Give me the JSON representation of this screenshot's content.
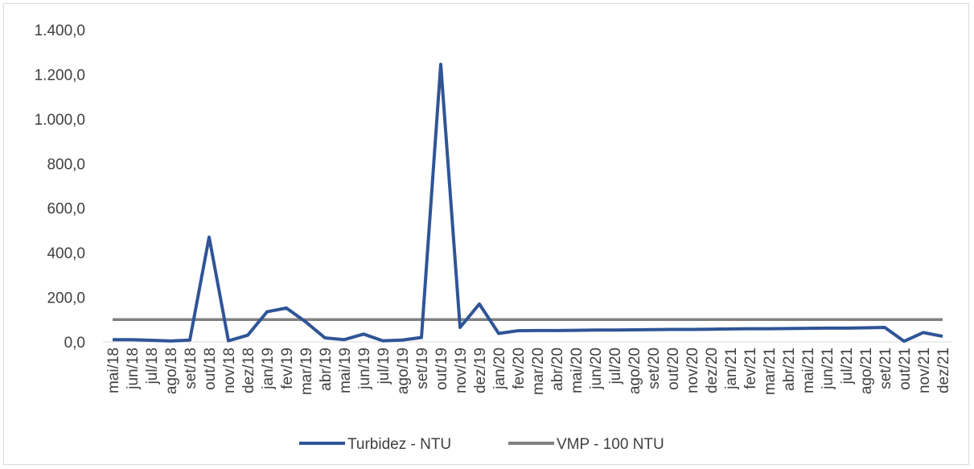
{
  "chart_data": {
    "type": "line",
    "categories": [
      "mai/18",
      "jun/18",
      "jul/18",
      "ago/18",
      "set/18",
      "out/18",
      "nov/18",
      "dez/18",
      "jan/19",
      "fev/19",
      "mar/19",
      "abr/19",
      "mai/19",
      "jun/19",
      "jul/19",
      "ago/19",
      "set/19",
      "out/19",
      "nov/19",
      "dez/19",
      "jan/20",
      "fev/20",
      "mar/20",
      "abr/20",
      "mai/20",
      "jun/20",
      "jul/20",
      "ago/20",
      "set/20",
      "out/20",
      "nov/20",
      "dez/20",
      "jan/21",
      "fev/21",
      "mar/21",
      "abr/21",
      "mai/21",
      "jun/21",
      "jul/21",
      "ago/21",
      "set/21",
      "out/21",
      "nov/21",
      "dez/21"
    ],
    "series": [
      {
        "name": "Turbidez - NTU",
        "color": "#2f5597",
        "values": [
          10,
          10,
          7,
          4,
          8,
          470,
          5,
          30,
          135,
          152,
          90,
          18,
          10,
          35,
          5,
          8,
          20,
          1245,
          65,
          170,
          38,
          50,
          51,
          51,
          52,
          53,
          53,
          54,
          55,
          56,
          56,
          57,
          58,
          59,
          59,
          60,
          61,
          62,
          62,
          63,
          65,
          3,
          42,
          25
        ]
      },
      {
        "name": "VMP - 100 NTU",
        "color": "#808080",
        "values": [
          100,
          100,
          100,
          100,
          100,
          100,
          100,
          100,
          100,
          100,
          100,
          100,
          100,
          100,
          100,
          100,
          100,
          100,
          100,
          100,
          100,
          100,
          100,
          100,
          100,
          100,
          100,
          100,
          100,
          100,
          100,
          100,
          100,
          100,
          100,
          100,
          100,
          100,
          100,
          100,
          100,
          100,
          100,
          100
        ]
      }
    ],
    "ylim": [
      0,
      1400
    ],
    "yticks": [
      {
        "value": 0,
        "label": "0,0"
      },
      {
        "value": 200,
        "label": "200,0"
      },
      {
        "value": 400,
        "label": "400,0"
      },
      {
        "value": 600,
        "label": "600,0"
      },
      {
        "value": 800,
        "label": "800,0"
      },
      {
        "value": 1000,
        "label": "1.000,0"
      },
      {
        "value": 1200,
        "label": "1.200,0"
      },
      {
        "value": 1400,
        "label": "1.400,0"
      }
    ],
    "legend": "bottom"
  }
}
